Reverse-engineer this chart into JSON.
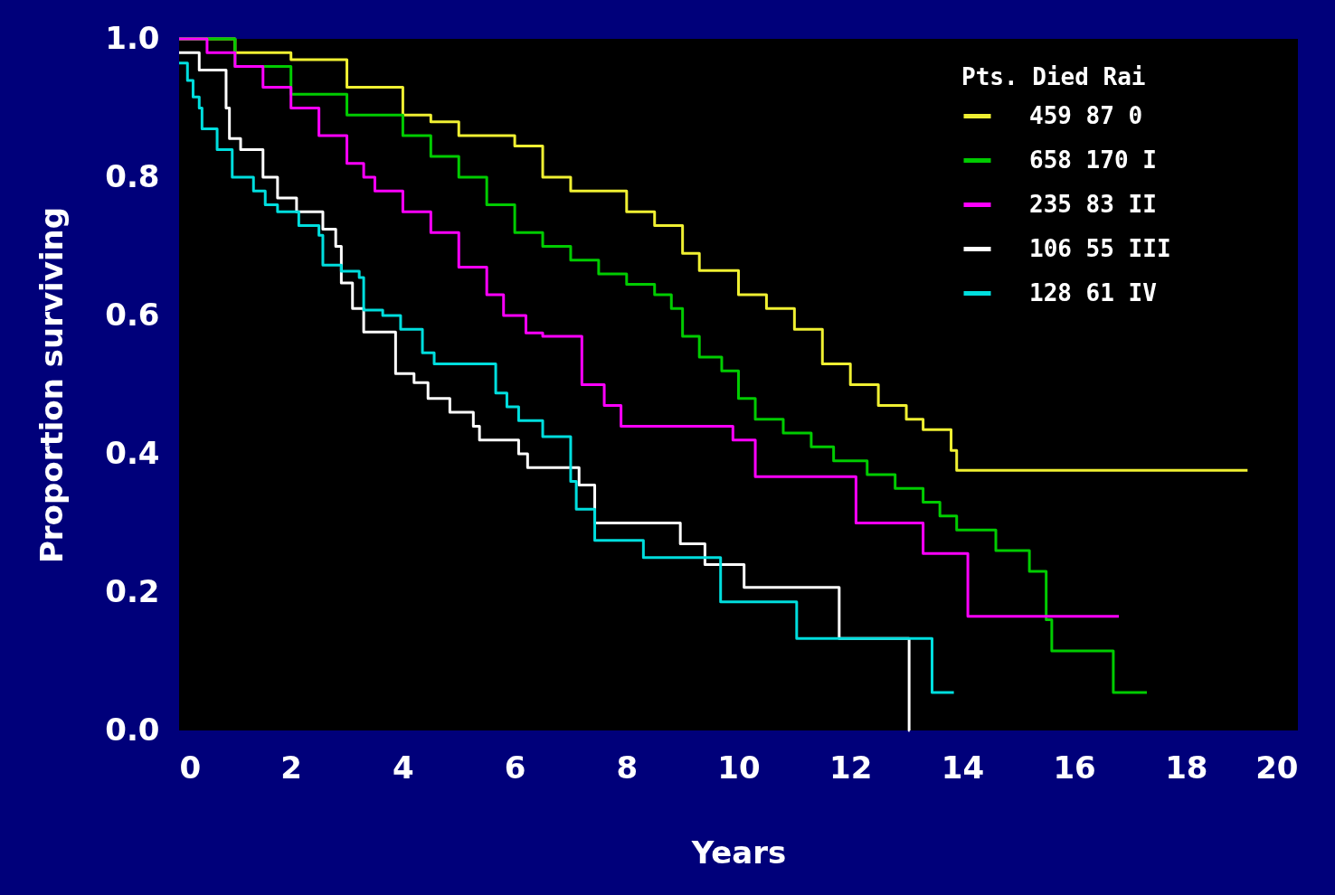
{
  "chart_data": {
    "type": "step",
    "xlabel": "Years",
    "ylabel": "Proportion surviving",
    "xlim": [
      0,
      20
    ],
    "xticks": [
      0,
      2,
      4,
      6,
      8,
      10,
      12,
      14,
      16,
      18,
      20
    ],
    "ylim": [
      0,
      1
    ],
    "yticks": [
      {
        "value": 0,
        "label": "0.0"
      },
      0.2,
      0.4,
      0.6,
      0.8,
      {
        "value": 1,
        "label": "1.0"
      }
    ],
    "legend": "top right",
    "legend_title": "Pts. Died Rai",
    "series": [
      {
        "name": "459 87 0",
        "color": "#f0f032",
        "x": [
          0,
          1,
          2,
          3,
          4,
          4.5,
          5,
          6,
          6.5,
          7,
          8,
          8.5,
          9,
          9.3,
          10,
          10.5,
          11,
          11.5,
          12,
          12.5,
          13,
          13.3,
          13.8,
          13.9,
          19.1
        ],
        "values": [
          1.0,
          0.98,
          0.97,
          0.93,
          0.89,
          0.88,
          0.86,
          0.845,
          0.8,
          0.78,
          0.75,
          0.73,
          0.69,
          0.665,
          0.63,
          0.61,
          0.58,
          0.53,
          0.5,
          0.47,
          0.45,
          0.435,
          0.405,
          0.376,
          0.376
        ]
      },
      {
        "name": "658 170 I",
        "color": "#00cc00",
        "x": [
          0,
          1,
          2,
          3,
          4,
          4.5,
          5,
          5.5,
          6,
          6.5,
          7,
          7.5,
          8,
          8.5,
          8.8,
          9,
          9.3,
          9.7,
          10,
          10.3,
          10.8,
          11.3,
          11.7,
          12.3,
          12.8,
          13.3,
          13.6,
          13.9,
          14.6,
          15.2,
          15.5,
          15.6,
          16.7,
          17.3
        ],
        "values": [
          1.0,
          0.96,
          0.92,
          0.89,
          0.86,
          0.83,
          0.8,
          0.76,
          0.72,
          0.7,
          0.68,
          0.66,
          0.645,
          0.63,
          0.61,
          0.57,
          0.54,
          0.52,
          0.48,
          0.45,
          0.43,
          0.41,
          0.39,
          0.37,
          0.35,
          0.33,
          0.31,
          0.29,
          0.26,
          0.23,
          0.16,
          0.115,
          0.055,
          0.055
        ]
      },
      {
        "name": "235 83 II",
        "color": "#ff00ff",
        "x": [
          0,
          0.5,
          1,
          1.5,
          2,
          2.5,
          3,
          3.3,
          3.5,
          4,
          4.5,
          5,
          5.5,
          5.8,
          6.2,
          6.5,
          7.2,
          7.6,
          7.9,
          9.9,
          10.3,
          12.1,
          13.3,
          14.1,
          16.8
        ],
        "values": [
          1.0,
          0.98,
          0.96,
          0.93,
          0.9,
          0.86,
          0.82,
          0.8,
          0.78,
          0.75,
          0.72,
          0.67,
          0.63,
          0.6,
          0.575,
          0.57,
          0.5,
          0.47,
          0.44,
          0.42,
          0.367,
          0.3,
          0.256,
          0.165,
          0.165
        ]
      },
      {
        "name": "106 55 III",
        "color": "#ffffff",
        "x": [
          0,
          0.36,
          0.84,
          0.9,
          1.1,
          1.5,
          1.76,
          2.1,
          2.57,
          2.8,
          2.9,
          3.1,
          3.3,
          3.87,
          4.2,
          4.45,
          4.84,
          5.26,
          5.37,
          6.07,
          6.23,
          7.15,
          7.43,
          8.96,
          9.4,
          10.1,
          11.8,
          13.05,
          13.06
        ],
        "values": [
          0.98,
          0.955,
          0.9,
          0.856,
          0.84,
          0.8,
          0.77,
          0.75,
          0.725,
          0.7,
          0.647,
          0.61,
          0.576,
          0.516,
          0.503,
          0.48,
          0.46,
          0.44,
          0.42,
          0.4,
          0.38,
          0.355,
          0.3,
          0.27,
          0.24,
          0.207,
          0.133,
          0.0,
          0.0
        ]
      },
      {
        "name": "128 61 IV",
        "color": "#00dede",
        "x": [
          0,
          0.15,
          0.25,
          0.36,
          0.41,
          0.68,
          0.95,
          1.33,
          1.54,
          1.76,
          2.14,
          2.5,
          2.57,
          2.9,
          3.22,
          3.3,
          3.64,
          3.96,
          4.35,
          4.56,
          5.66,
          5.86,
          6.07,
          6.5,
          7.0,
          7.1,
          7.43,
          8.3,
          9.68,
          11.04,
          13.46,
          13.85
        ],
        "values": [
          0.965,
          0.94,
          0.916,
          0.9,
          0.87,
          0.84,
          0.8,
          0.78,
          0.76,
          0.75,
          0.73,
          0.716,
          0.673,
          0.664,
          0.655,
          0.608,
          0.6,
          0.58,
          0.546,
          0.53,
          0.488,
          0.468,
          0.448,
          0.425,
          0.36,
          0.32,
          0.275,
          0.25,
          0.186,
          0.133,
          0.055,
          0.055
        ]
      }
    ]
  }
}
